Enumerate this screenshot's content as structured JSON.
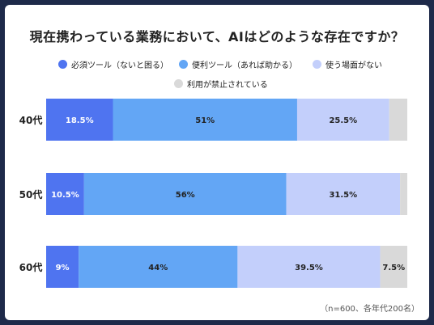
{
  "title": "現在携わっている業務において、AIはどのような存在ですか？",
  "note": "（n=600、各年代200名）",
  "colors": {
    "background": "#1e2a4a",
    "series": [
      "#4f74f0",
      "#63a6f5",
      "#c3cffb",
      "#d9d9d9"
    ]
  },
  "chart_data": {
    "type": "bar",
    "orientation": "horizontal",
    "stacked": true,
    "percent_stacked": true,
    "categories": [
      "40代",
      "50代",
      "60代"
    ],
    "series": [
      {
        "name": "必須ツール（ないと困る）",
        "values": [
          18.5,
          10.5,
          9
        ]
      },
      {
        "name": "便利ツール（あれば助かる）",
        "values": [
          51,
          56,
          44
        ]
      },
      {
        "name": "使う場面がない",
        "values": [
          25.5,
          31.5,
          39.5
        ]
      },
      {
        "name": "利用が禁止されている",
        "values": [
          5,
          2,
          7.5
        ]
      }
    ],
    "data_labels": [
      [
        "18.5%",
        "51%",
        "25.5%",
        ""
      ],
      [
        "10.5%",
        "56%",
        "31.5%",
        ""
      ],
      [
        "9%",
        "44%",
        "39.5%",
        "7.5%"
      ]
    ],
    "xlim": [
      0,
      100
    ],
    "legend_position": "top"
  }
}
